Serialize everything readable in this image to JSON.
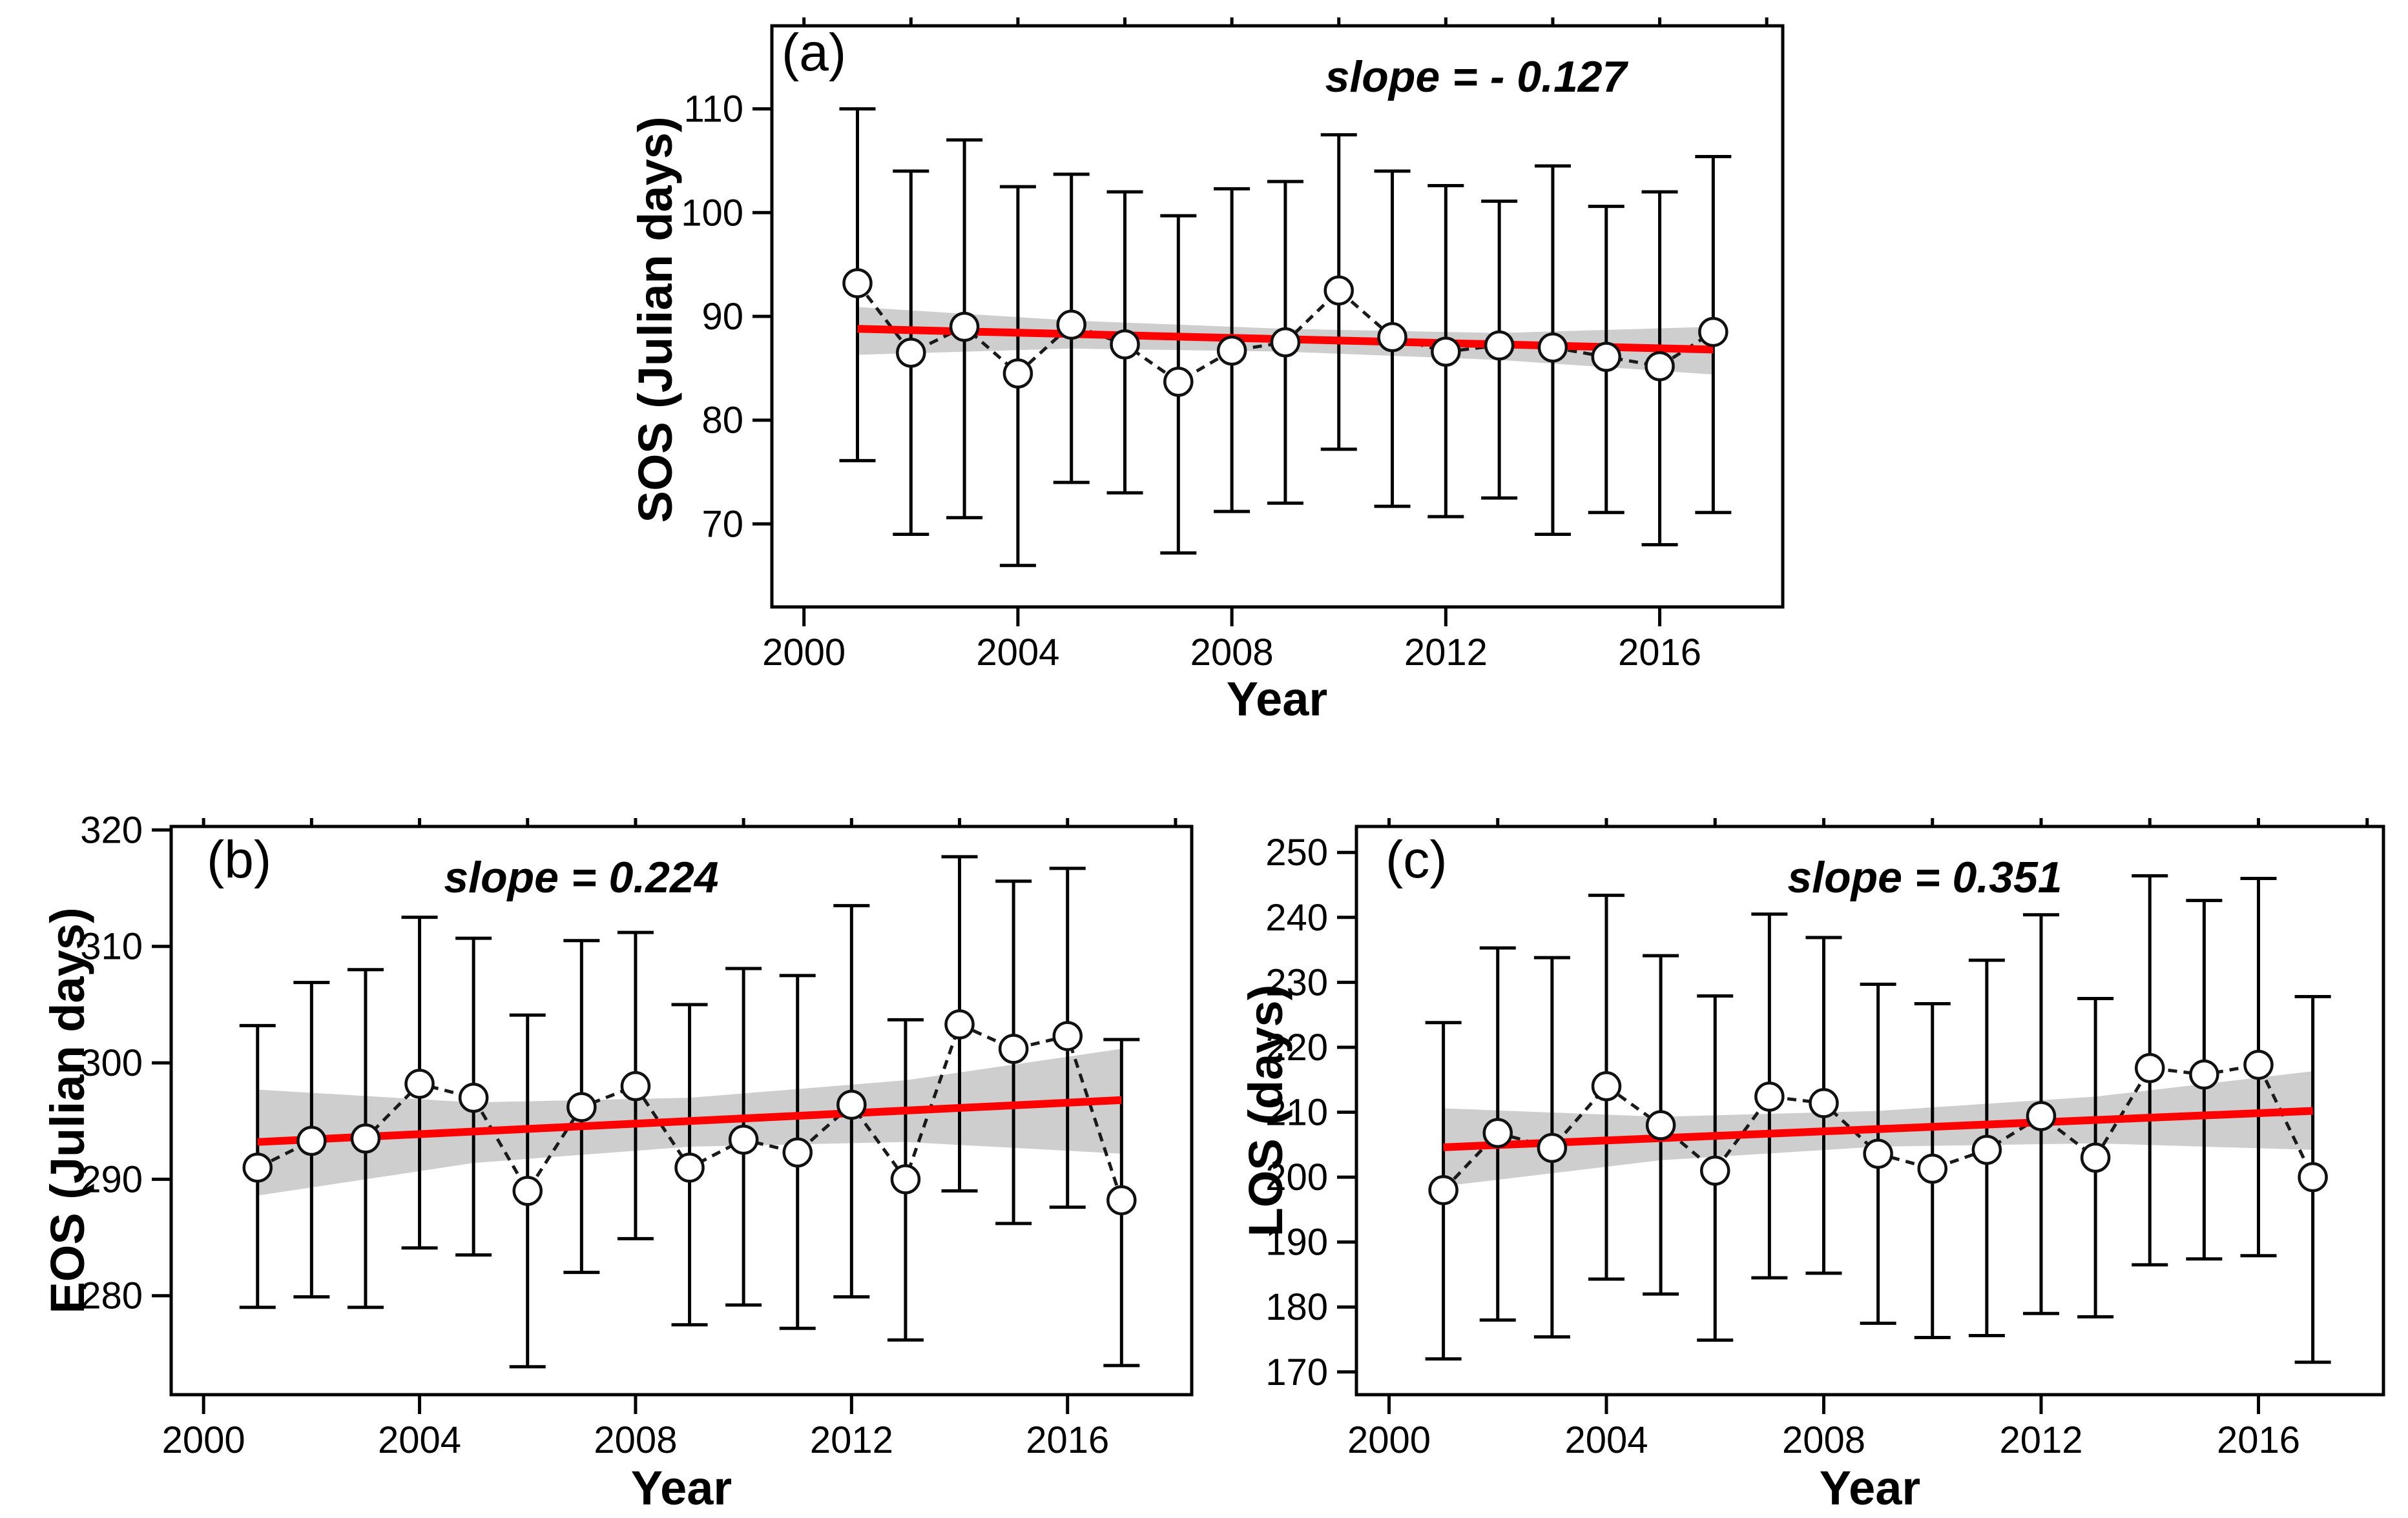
{
  "figure": {
    "background": "#ffffff",
    "colors": {
      "trend_line": "#ff0000",
      "confidence_band": "#cecece",
      "data_line": "#1a1a1a",
      "marker_fill": "#ffffff",
      "marker_stroke": "#111111",
      "axis": "#000000"
    }
  },
  "chart_data": [
    {
      "id": "a",
      "type": "line",
      "panel_label": "(a)",
      "annotation": "slope = - 0.127",
      "slope": -0.127,
      "xlabel": "Year",
      "ylabel": "SOS (Julian days)",
      "xlim": [
        1999.4,
        2018.3
      ],
      "ylim": [
        62,
        118
      ],
      "xticks": [
        2000,
        2004,
        2008,
        2012,
        2016
      ],
      "yticks": [
        70,
        80,
        90,
        100,
        110
      ],
      "grid": false,
      "legend": "none",
      "x": [
        2001,
        2002,
        2003,
        2004,
        2005,
        2006,
        2007,
        2008,
        2009,
        2010,
        2011,
        2012,
        2013,
        2014,
        2015,
        2016,
        2017
      ],
      "y": [
        93.2,
        86.5,
        89.0,
        84.5,
        89.2,
        87.3,
        83.7,
        86.7,
        87.5,
        92.5,
        88.0,
        86.6,
        87.2,
        87.0,
        86.1,
        85.2,
        88.5
      ],
      "err_low": [
        76.1,
        69.0,
        70.6,
        66.0,
        74.0,
        73.0,
        67.2,
        71.2,
        72.0,
        77.2,
        71.7,
        70.7,
        72.5,
        69.0,
        71.1,
        68.0,
        71.1
      ],
      "err_high": [
        110.0,
        104.0,
        107.0,
        102.5,
        103.7,
        102.0,
        99.7,
        102.3,
        103.0,
        107.5,
        104.0,
        102.6,
        101.1,
        104.5,
        100.6,
        102.0,
        105.4
      ],
      "trend": {
        "x": [
          2001,
          2017
        ],
        "y": [
          88.8,
          86.8
        ]
      },
      "band": {
        "x": [
          2001,
          2005,
          2009,
          2013,
          2017
        ],
        "upper": [
          90.9,
          89.6,
          88.8,
          88.4,
          89.0
        ],
        "lower": [
          86.3,
          86.9,
          86.6,
          85.8,
          84.4
        ]
      }
    },
    {
      "id": "b",
      "type": "line",
      "panel_label": "(b)",
      "annotation": "slope = 0.224",
      "slope": 0.224,
      "xlabel": "Year",
      "ylabel": "EOS (Julian days)",
      "xlim": [
        1999.4,
        2018.3
      ],
      "ylim": [
        271.5,
        320.3
      ],
      "xticks": [
        2000,
        2004,
        2008,
        2012,
        2016
      ],
      "yticks": [
        280,
        290,
        300,
        310,
        320
      ],
      "grid": false,
      "legend": "none",
      "x": [
        2001,
        2002,
        2003,
        2004,
        2005,
        2006,
        2007,
        2008,
        2009,
        2010,
        2011,
        2012,
        2013,
        2014,
        2015,
        2016,
        2017
      ],
      "y": [
        291.0,
        293.3,
        293.5,
        298.2,
        297.0,
        289.0,
        296.2,
        298.0,
        291.0,
        293.4,
        292.3,
        296.4,
        290.0,
        303.3,
        301.2,
        302.3,
        288.2
      ],
      "err_low": [
        279.0,
        279.9,
        279.0,
        284.1,
        283.5,
        273.9,
        282.0,
        284.9,
        277.5,
        279.2,
        277.2,
        279.9,
        276.2,
        289.0,
        286.2,
        287.6,
        274.0
      ],
      "err_high": [
        303.2,
        306.9,
        308.0,
        312.5,
        310.7,
        304.1,
        310.5,
        311.2,
        305.0,
        308.1,
        307.5,
        313.5,
        303.7,
        317.7,
        315.6,
        316.7,
        302.0
      ],
      "trend": {
        "x": [
          2001,
          2017
        ],
        "y": [
          293.2,
          296.8
        ]
      },
      "band": {
        "x": [
          2001,
          2005,
          2009,
          2013,
          2017
        ],
        "upper": [
          297.7,
          296.6,
          297.0,
          298.5,
          301.2
        ],
        "lower": [
          288.6,
          291.4,
          292.8,
          293.2,
          292.2
        ]
      }
    },
    {
      "id": "c",
      "type": "line",
      "panel_label": "(c)",
      "annotation": "slope = 0.351",
      "slope": 0.351,
      "xlabel": "Year",
      "ylabel": "LOS (days)",
      "xlim": [
        1999.4,
        2018.3
      ],
      "ylim": [
        166.5,
        254
      ],
      "xticks": [
        2000,
        2004,
        2008,
        2012,
        2016
      ],
      "yticks": [
        170,
        180,
        190,
        200,
        210,
        220,
        230,
        240,
        250
      ],
      "grid": false,
      "legend": "none",
      "x": [
        2001,
        2002,
        2003,
        2004,
        2005,
        2006,
        2007,
        2008,
        2009,
        2010,
        2011,
        2012,
        2013,
        2014,
        2015,
        2016,
        2017
      ],
      "y": [
        198.0,
        206.8,
        204.5,
        214.0,
        208.0,
        201.0,
        212.4,
        211.4,
        203.6,
        201.3,
        204.2,
        209.4,
        203.0,
        216.8,
        215.8,
        217.3,
        200.0
      ],
      "err_low": [
        172.0,
        178.0,
        175.4,
        184.3,
        182.0,
        174.9,
        184.5,
        185.2,
        177.5,
        175.3,
        175.6,
        179.0,
        178.5,
        186.5,
        187.4,
        187.9,
        171.5
      ],
      "err_high": [
        223.8,
        235.3,
        233.8,
        243.4,
        234.1,
        227.9,
        240.5,
        236.9,
        229.7,
        226.7,
        233.4,
        240.4,
        227.5,
        246.4,
        242.6,
        246.0,
        227.8
      ],
      "trend": {
        "x": [
          2001,
          2017
        ],
        "y": [
          204.6,
          210.2
        ]
      },
      "band": {
        "x": [
          2001,
          2005,
          2009,
          2013,
          2017
        ],
        "upper": [
          210.6,
          209.3,
          210.2,
          212.4,
          216.3
        ],
        "lower": [
          198.6,
          202.6,
          204.7,
          205.2,
          204.2
        ]
      }
    }
  ]
}
